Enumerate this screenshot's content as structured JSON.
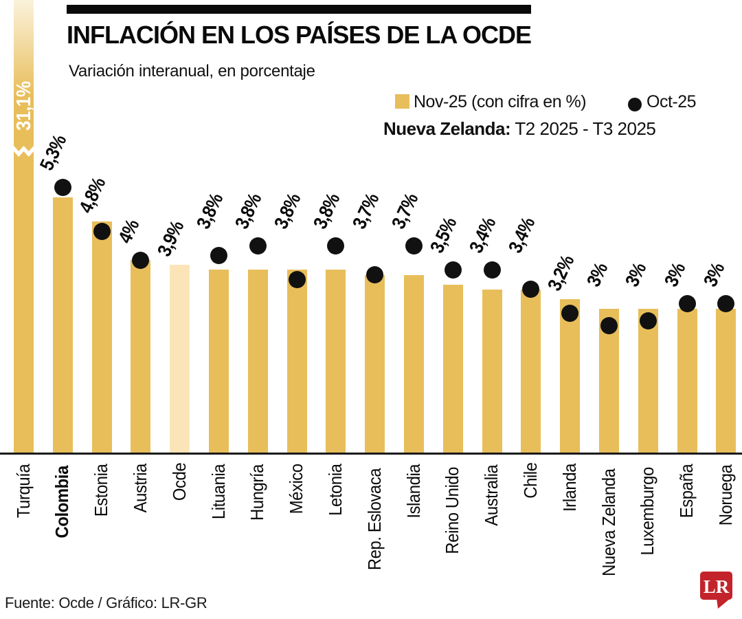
{
  "header": {
    "title": "INFLACIÓN EN LOS PAÍSES DE LA OCDE",
    "subtitle": "Variación interanual, en porcentaje"
  },
  "legend": {
    "nov_label": "Nov-25 (con cifra en %)",
    "oct_label": "Oct-25",
    "note_bold": "Nueva Zelanda:",
    "note_rest": " T2 2025 - T3 2025"
  },
  "footer": {
    "source": "Fuente: Ocde / Gráfico: LR-GR",
    "logo_text": "LR"
  },
  "colors": {
    "bar": "#E8BE5B",
    "bar_highlight": "#FBE5B8",
    "bar_gradient_top": "#FBF2DC",
    "dot": "#111111",
    "axis": "#1a1a1a",
    "logo_red": "#C3242B",
    "label_on_bar": "#ffffff"
  },
  "chart_data": {
    "type": "bar",
    "title": "Inflación en los países de la OCDE",
    "subtitle": "Variación interanual, en porcentaje",
    "unit": "%",
    "ylim": [
      0,
      6
    ],
    "grid": false,
    "legend_position": "top-right",
    "series_meta": [
      {
        "name": "Nov-25",
        "style": "bar",
        "labeled": true
      },
      {
        "name": "Oct-25",
        "style": "dot",
        "labeled": false
      }
    ],
    "axis_break": {
      "bar": "Turquía",
      "reason": "value 31,1% exceeds scale"
    },
    "items": [
      {
        "name": "Turquía",
        "nov": 31.1,
        "label": "31,1%",
        "oct": null,
        "broken": true
      },
      {
        "name": "Colombia",
        "nov": 5.3,
        "label": "5,3%",
        "oct": 5.5,
        "bold": true
      },
      {
        "name": "Estonia",
        "nov": 4.8,
        "label": "4,8%",
        "oct": 4.6
      },
      {
        "name": "Austria",
        "nov": 4.0,
        "label": "4%",
        "oct": 4.0
      },
      {
        "name": "Ocde",
        "nov": 3.9,
        "label": "3,9%",
        "oct": null,
        "highlight": true
      },
      {
        "name": "Lituania",
        "nov": 3.8,
        "label": "3,8%",
        "oct": 4.1
      },
      {
        "name": "Hungría",
        "nov": 3.8,
        "label": "3,8%",
        "oct": 4.3
      },
      {
        "name": "México",
        "nov": 3.8,
        "label": "3,8%",
        "oct": 3.6
      },
      {
        "name": "Letonia",
        "nov": 3.8,
        "label": "3,8%",
        "oct": 4.3
      },
      {
        "name": "Rep. Eslovaca",
        "nov": 3.7,
        "label": "3,7%",
        "oct": 3.7
      },
      {
        "name": "Islandia",
        "nov": 3.7,
        "label": "3,7%",
        "oct": 4.3
      },
      {
        "name": "Reino Unido",
        "nov": 3.5,
        "label": "3,5%",
        "oct": 3.8
      },
      {
        "name": "Australia",
        "nov": 3.4,
        "label": "3,4%",
        "oct": 3.8
      },
      {
        "name": "Chile",
        "nov": 3.4,
        "label": "3,4%",
        "oct": 3.4
      },
      {
        "name": "Irlanda",
        "nov": 3.2,
        "label": "3,2%",
        "oct": 2.9
      },
      {
        "name": "Nueva Zelanda",
        "nov": 3.0,
        "label": "3%",
        "oct": 2.65
      },
      {
        "name": "Luxemburgo",
        "nov": 3.0,
        "label": "3%",
        "oct": 2.75
      },
      {
        "name": "España",
        "nov": 3.0,
        "label": "3%",
        "oct": 3.1
      },
      {
        "name": "Noruega",
        "nov": 3.0,
        "label": "3%",
        "oct": 3.1
      }
    ]
  }
}
